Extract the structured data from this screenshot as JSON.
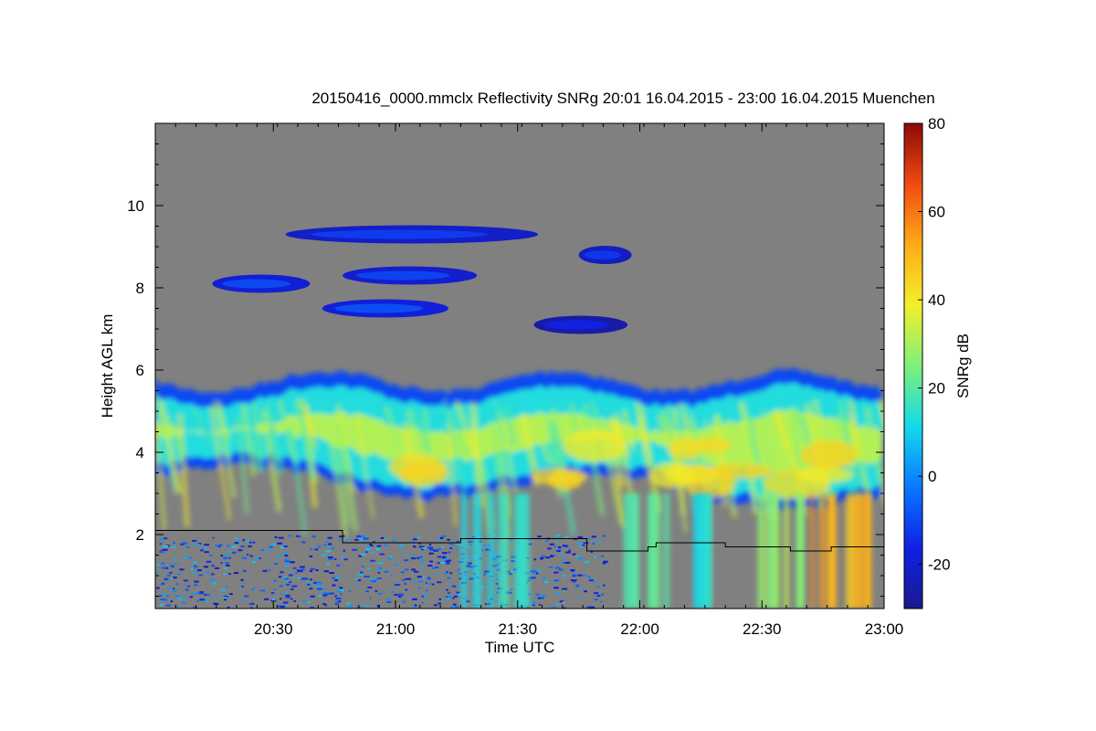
{
  "chart_data": {
    "type": "heatmap",
    "title": "20150416_0000.mmclx Reflectivity SNRg   20:01 16.04.2015 - 23:00 16.04.2015 Muenchen",
    "xlabel": "Time UTC",
    "ylabel": "Height AGL km",
    "xlim_minutes": [
      0,
      179
    ],
    "ylim_km": [
      0.2,
      12.0
    ],
    "x_ticks": [
      {
        "label": "20:30",
        "minutes": 29
      },
      {
        "label": "21:00",
        "minutes": 59
      },
      {
        "label": "21:30",
        "minutes": 89
      },
      {
        "label": "22:00",
        "minutes": 119
      },
      {
        "label": "22:30",
        "minutes": 149
      },
      {
        "label": "23:00",
        "minutes": 179
      }
    ],
    "y_ticks": [
      {
        "label": "2",
        "value": 2
      },
      {
        "label": "4",
        "value": 4
      },
      {
        "label": "6",
        "value": 6
      },
      {
        "label": "8",
        "value": 8
      },
      {
        "label": "10",
        "value": 10
      }
    ],
    "colorbar": {
      "label": "SNRg dB",
      "range": [
        -30,
        80
      ],
      "ticks": [
        {
          "label": "-20",
          "value": -20
        },
        {
          "label": "0",
          "value": 0
        },
        {
          "label": "20",
          "value": 20
        },
        {
          "label": "40",
          "value": 40
        },
        {
          "label": "60",
          "value": 60
        },
        {
          "label": "80",
          "value": 80
        }
      ],
      "colormap": [
        "#1a1a8c",
        "#1020e6",
        "#0a78ff",
        "#13d9ec",
        "#7ef07a",
        "#f2f02a",
        "#ffab18",
        "#f04a10",
        "#8c0a08"
      ]
    },
    "background_color": "#808080",
    "main_cloud": {
      "base_km": 3.3,
      "top_km": 5.8,
      "mean_snr_db": 25,
      "max_snr_db": 45
    },
    "cirrus_layers": [
      {
        "start_min": 32,
        "end_min": 94,
        "height_km": 9.3,
        "snr_db": -15
      },
      {
        "start_min": 14,
        "end_min": 38,
        "height_km": 8.1,
        "snr_db": -13
      },
      {
        "start_min": 46,
        "end_min": 79,
        "height_km": 8.3,
        "snr_db": -14
      },
      {
        "start_min": 41,
        "end_min": 72,
        "height_km": 7.5,
        "snr_db": -12
      },
      {
        "start_min": 104,
        "end_min": 117,
        "height_km": 8.8,
        "snr_db": -16
      },
      {
        "start_min": 93,
        "end_min": 116,
        "height_km": 7.1,
        "snr_db": -20
      }
    ],
    "cloud_base_line_km": [
      {
        "minutes": 0,
        "height_km": 2.1
      },
      {
        "minutes": 46,
        "height_km": 2.1
      },
      {
        "minutes": 46,
        "height_km": 1.8
      },
      {
        "minutes": 75,
        "height_km": 1.8
      },
      {
        "minutes": 75,
        "height_km": 1.9
      },
      {
        "minutes": 106,
        "height_km": 1.9
      },
      {
        "minutes": 106,
        "height_km": 1.6
      },
      {
        "minutes": 121,
        "height_km": 1.6
      },
      {
        "minutes": 121,
        "height_km": 1.7
      },
      {
        "minutes": 123,
        "height_km": 1.7
      },
      {
        "minutes": 123,
        "height_km": 1.8
      },
      {
        "minutes": 140,
        "height_km": 1.8
      },
      {
        "minutes": 140,
        "height_km": 1.7
      },
      {
        "minutes": 156,
        "height_km": 1.7
      },
      {
        "minutes": 156,
        "height_km": 1.6
      },
      {
        "minutes": 166,
        "height_km": 1.6
      },
      {
        "minutes": 166,
        "height_km": 1.7
      },
      {
        "minutes": 179,
        "height_km": 1.7
      }
    ],
    "precip_columns": [
      {
        "start_min": 75,
        "end_min": 90,
        "snr_db": 15
      },
      {
        "start_min": 115,
        "end_min": 125,
        "snr_db": 18
      },
      {
        "start_min": 132,
        "end_min": 136,
        "snr_db": 14
      },
      {
        "start_min": 146,
        "end_min": 166,
        "snr_db": 28
      },
      {
        "start_min": 160,
        "end_min": 175,
        "snr_db": 52
      }
    ]
  }
}
